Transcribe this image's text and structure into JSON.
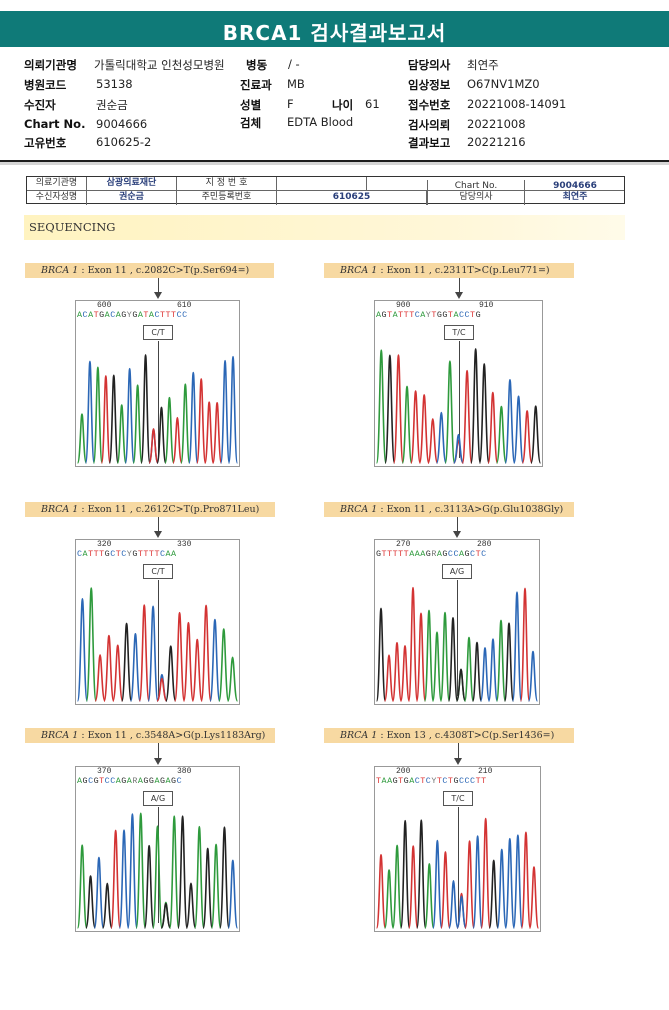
{
  "title": "BRCA1 검사결과보고서",
  "info": {
    "requesting_institution_label": "의뢰기관명",
    "requesting_institution": "가톨릭대학교 인천성모병원",
    "ward_label": "병동",
    "ward": "/ -",
    "attending_label": "담당의사",
    "attending": "최연주",
    "hospital_code_label": "병원코드",
    "hospital_code": "53138",
    "department_label": "진료과",
    "department": "MB",
    "clinical_info_label": "임상정보",
    "clinical_info": "O67NV1MZ0",
    "patient_label": "수진자",
    "patient": "권순금",
    "sex_label": "성별",
    "sex": "F",
    "age_label": "나이",
    "age": "61",
    "reception_label": "접수번호",
    "reception": "20221008-14091",
    "chart_no_label": "Chart No.",
    "chart_no": "9004666",
    "specimen_label": "검체",
    "specimen": "EDTA Blood",
    "request_date_label": "검사의뢰",
    "request_date": "20221008",
    "unique_no_label": "고유번호",
    "unique_no": "610625-2",
    "report_date_label": "결과보고",
    "report_date": "20221216"
  },
  "form": {
    "inst_label": "의료기관명",
    "inst_value": "삼광의료재단",
    "designation_label": "지 정 번 호",
    "designation_value": "",
    "chart_label": "Chart No.",
    "chart_value": "9004666",
    "receiver_label": "수신자성명",
    "receiver_value": "권순금",
    "resident_label": "주민등록번호",
    "resident_value": "610625",
    "doctor_label": "담당의사",
    "doctor_value": "최연주"
  },
  "sequencing_title": "SEQUENCING",
  "gene": "BRCA 1",
  "panels": [
    {
      "variant": ": Exon 11 , c.2082C>T(p.Ser694=)",
      "pos1": "600",
      "pos2": "610",
      "bases": "ACATGACAGYGATACTTTCC",
      "genotype": "C/T"
    },
    {
      "variant": ": Exon 11 , c.2311T>C(p.Leu771=)",
      "pos1": "900",
      "pos2": "910",
      "bases": "AGTATTTCAYTGGTACCTG",
      "genotype": "T/C"
    },
    {
      "variant": ": Exon 11 , c.2612C>T(p.Pro871Leu)",
      "pos1": "320",
      "pos2": "330",
      "bases": "CATTTGCTCYGTTTTCAA",
      "genotype": "C/T"
    },
    {
      "variant": ": Exon 11 , c.3113A>G(p.Glu1038Gly)",
      "pos1": "270",
      "pos2": "280",
      "bases": "GTTTTTAAAGRAGCCAGCTC",
      "genotype": "A/G"
    },
    {
      "variant": ": Exon 11 , c.3548A>G(p.Lys1183Arg)",
      "pos1": "370",
      "pos2": "380",
      "bases": "AGCGTCCAGARAGGAGAGC",
      "genotype": "A/G"
    },
    {
      "variant": ": Exon 13 , c.4308T>C(p.Ser1436=)",
      "pos1": "200",
      "pos2": "210",
      "bases": "TAAGTGACTCYTCTGCCCTT",
      "genotype": "T/C"
    }
  ],
  "colors": {
    "title_bar": "#0f7a78",
    "label_bg": "#f7d9a2",
    "A": "#2e9a3c",
    "C": "#2b67b6",
    "G": "#222222",
    "T": "#d33333"
  }
}
